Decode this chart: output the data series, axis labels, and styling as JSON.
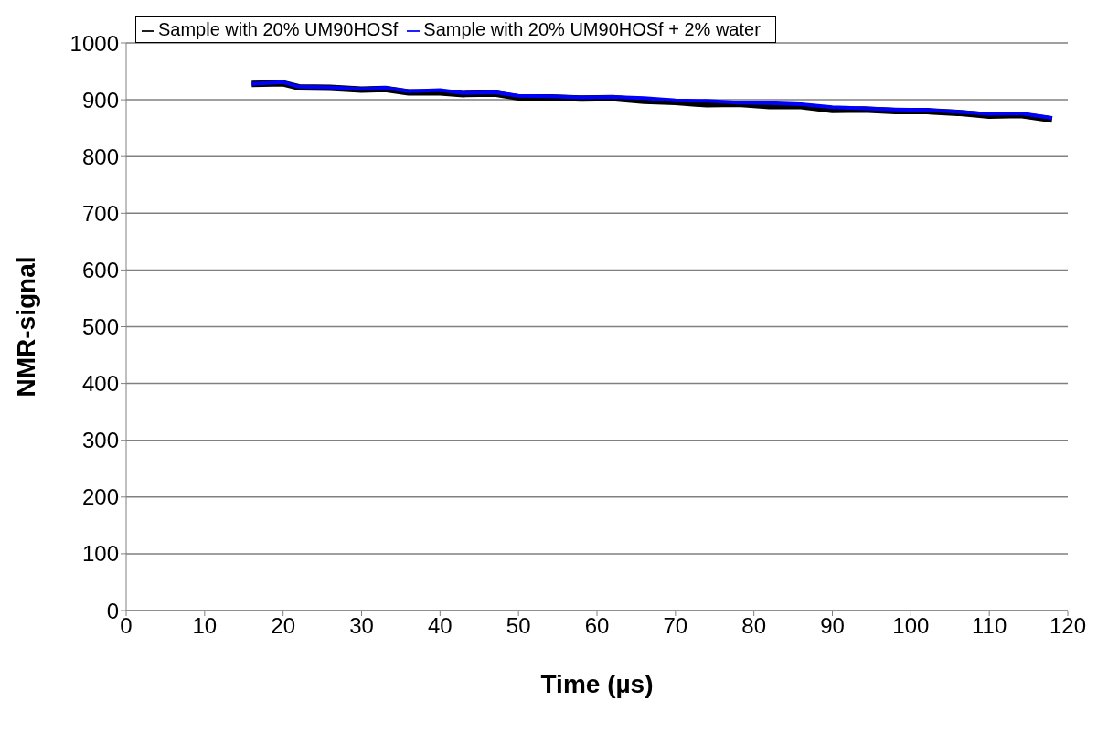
{
  "chart_data": {
    "type": "line",
    "xlabel": "Time (µs)",
    "ylabel": "NMR-signal",
    "x": [
      16,
      20,
      22,
      26,
      30,
      33,
      36,
      40,
      43,
      47,
      50,
      54,
      58,
      62,
      66,
      70,
      74,
      78,
      82,
      86,
      90,
      94,
      98,
      102,
      106,
      110,
      114,
      118
    ],
    "series": [
      {
        "name": "Sample with 20% UM90HOSf",
        "color": "#000000",
        "values": [
          928,
          929,
          922,
          921,
          918,
          919,
          913,
          913,
          910,
          911,
          904,
          904,
          902,
          903,
          898,
          896,
          892,
          893,
          889,
          889,
          882,
          883,
          880,
          880,
          877,
          872,
          873,
          865
        ]
      },
      {
        "name": "Sample with 20% UM90HOSf + 2% water",
        "color": "#0000ff",
        "values": [
          928,
          931,
          923,
          922,
          919,
          921,
          915,
          917,
          912,
          913,
          907,
          906,
          904,
          905,
          903,
          899,
          898,
          895,
          894,
          892,
          887,
          885,
          883,
          882,
          879,
          875,
          876,
          868
        ]
      }
    ],
    "xlim": [
      0,
      120
    ],
    "xticks": [
      0,
      10,
      20,
      30,
      40,
      50,
      60,
      70,
      80,
      90,
      100,
      110,
      120
    ],
    "ylim": [
      0,
      1000
    ],
    "yticks": [
      0,
      100,
      200,
      300,
      400,
      500,
      600,
      700,
      800,
      900,
      1000
    ],
    "grid": "y",
    "legend": "top",
    "marker": "none",
    "line_style": "solid"
  }
}
